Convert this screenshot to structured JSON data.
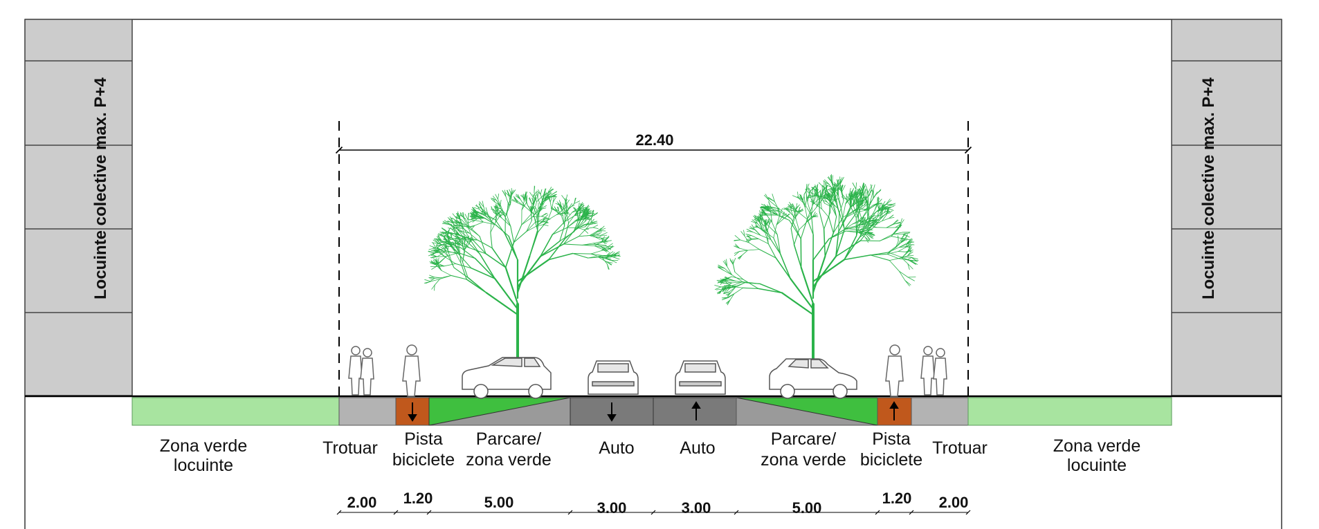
{
  "total_width": "22.40",
  "building_label": "Locuinte colective max. P+4",
  "zones": [
    {
      "label1": "Zona verde",
      "label2": "locuinte"
    },
    {
      "label1": "Trotuar",
      "label2": ""
    },
    {
      "label1": "Pista",
      "label2": "biciclete"
    },
    {
      "label1": "Parcare/",
      "label2": "zona verde"
    },
    {
      "label1": "Auto",
      "label2": ""
    },
    {
      "label1": "Auto",
      "label2": ""
    },
    {
      "label1": "Parcare/",
      "label2": "zona verde"
    },
    {
      "label1": "Pista",
      "label2": "biciclete"
    },
    {
      "label1": "Trotuar",
      "label2": ""
    },
    {
      "label1": "Zona verde",
      "label2": "locuinte"
    }
  ],
  "dimensions": [
    "2.00",
    "1.20",
    "5.00",
    "3.00",
    "3.00",
    "5.00",
    "1.20",
    "2.00"
  ],
  "colors": {
    "building": "#cccccc",
    "green_strip": "#a8e4a0",
    "sidewalk": "#b3b3b3",
    "bike_lane": "#c0581c",
    "parking_green": "#3fbf3f",
    "parking_grey": "#9a9a9a",
    "road": "#7a7a7a",
    "tree": "#2bb34a"
  }
}
